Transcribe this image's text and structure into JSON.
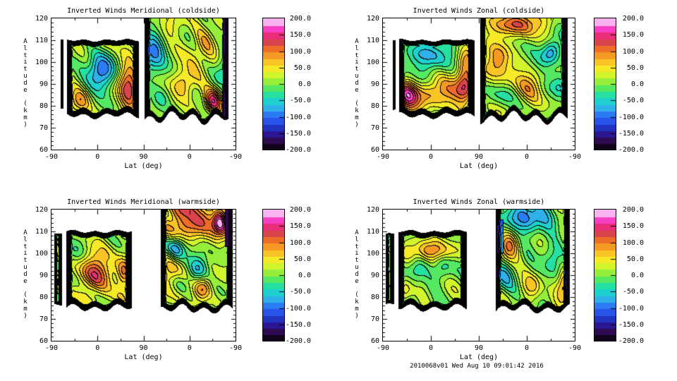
{
  "page": {
    "footer": "2010068v01 Wed Aug 10 09:01:42 2016",
    "background": "#ffffff",
    "text_color": "#000000"
  },
  "palette_bands": [
    "#10031a",
    "#2e0a52",
    "#2a1690",
    "#2233c0",
    "#2853e8",
    "#2b7cf2",
    "#2fb0e8",
    "#1ed0d0",
    "#25e0a0",
    "#55e862",
    "#95ee3a",
    "#d2f42c",
    "#f6ea28",
    "#f8c426",
    "#f49a24",
    "#ec6c28",
    "#d8444c",
    "#ea2d78",
    "#f53fc4",
    "#f9b2f0"
  ],
  "chart_data": [
    {
      "type": "filled_contour",
      "title": "Inverted Winds Meridional (coldside)",
      "xlabel": "Lat (deg)",
      "ylabel": "Altitude (km)",
      "x_tick_labels": [
        "-90",
        "0",
        "90",
        "0",
        "-90"
      ],
      "y_tick_labels": [
        "120",
        "110",
        "100",
        "90",
        "80",
        "70",
        "60"
      ],
      "y_range": [
        60,
        120
      ],
      "contour_level_step": 20,
      "colorbar": {
        "tick_labels": [
          "200.0",
          "150.0",
          "100.0",
          "50.0",
          "0.0",
          "-50.0",
          "-100.0",
          "-150.0",
          "-200.0"
        ],
        "range": [
          -200,
          200
        ],
        "n_bands": 20
      },
      "field": {
        "seed": 11,
        "base": 15,
        "regions": [
          {
            "kind": "sliver",
            "x0": 0.05,
            "x1": 0.066,
            "alt_bottom": 78,
            "alt_top": 110,
            "top_open": false,
            "wiggle": 0.4
          },
          {
            "kind": "block",
            "x0": 0.084,
            "x1": 0.477,
            "alt_bottom": 75.5,
            "alt_top": 110,
            "top_open": false,
            "wiggle": 1.0
          },
          {
            "kind": "block",
            "x0": 0.507,
            "x1": 0.962,
            "alt_bottom": 74.5,
            "alt_top": 120,
            "top_open": true,
            "wiggle": 2.0
          }
        ],
        "dark_columns": [
          {
            "x0": 0.935,
            "x1": 0.962,
            "alt0": 74,
            "alt1": 120,
            "s": 0.85
          }
        ],
        "blobs": [
          [
            0.27,
            95,
            -115,
            0.055,
            6
          ],
          [
            0.42,
            89,
            115,
            0.04,
            9
          ],
          [
            0.15,
            82,
            75,
            0.04,
            4
          ],
          [
            0.56,
            106,
            -105,
            0.05,
            7
          ],
          [
            0.64,
            116,
            55,
            0.05,
            5
          ],
          [
            0.72,
            91,
            70,
            0.05,
            5
          ],
          [
            0.88,
            82,
            120,
            0.035,
            4
          ],
          [
            0.83,
            107,
            55,
            0.045,
            6
          ],
          [
            0.93,
            96,
            -50,
            0.03,
            5
          ],
          [
            0.6,
            84,
            -40,
            0.04,
            4
          ]
        ]
      }
    },
    {
      "type": "filled_contour",
      "title": "Inverted Winds Zonal (coldside)",
      "xlabel": "Lat (deg)",
      "ylabel": "Altitude (km)",
      "x_tick_labels": [
        "-90",
        "0",
        "90",
        "0",
        "-90"
      ],
      "y_tick_labels": [
        "120",
        "110",
        "100",
        "90",
        "80",
        "70",
        "60"
      ],
      "y_range": [
        60,
        120
      ],
      "contour_level_step": 20,
      "colorbar": {
        "tick_labels": [
          "200.0",
          "150.0",
          "100.0",
          "50.0",
          "0.0",
          "-50.0",
          "-100.0",
          "-150.0",
          "-200.0"
        ],
        "range": [
          -200,
          200
        ],
        "n_bands": 20
      },
      "field": {
        "seed": 22,
        "base": 10,
        "regions": [
          {
            "kind": "sliver",
            "x0": 0.05,
            "x1": 0.066,
            "alt_bottom": 78,
            "alt_top": 110,
            "top_open": false,
            "wiggle": 0.4
          },
          {
            "kind": "block",
            "x0": 0.084,
            "x1": 0.477,
            "alt_bottom": 75.5,
            "alt_top": 110,
            "top_open": false,
            "wiggle": 1.0
          },
          {
            "kind": "block",
            "x0": 0.507,
            "x1": 0.962,
            "alt_bottom": 74.5,
            "alt_top": 120,
            "top_open": true,
            "wiggle": 2.0
          }
        ],
        "dark_columns": [
          {
            "x0": 0.94,
            "x1": 0.962,
            "alt0": 95,
            "alt1": 120,
            "s": 0.8
          }
        ],
        "blobs": [
          [
            0.24,
            102,
            -75,
            0.08,
            6
          ],
          [
            0.26,
            85,
            95,
            0.1,
            5
          ],
          [
            0.43,
            92,
            125,
            0.035,
            9
          ],
          [
            0.13,
            85,
            100,
            0.035,
            5
          ],
          [
            0.7,
            117,
            100,
            0.1,
            4
          ],
          [
            0.595,
            100,
            85,
            0.05,
            7
          ],
          [
            0.88,
            105,
            -100,
            0.035,
            4
          ],
          [
            0.76,
            88,
            60,
            0.05,
            5
          ],
          [
            0.93,
            91,
            -45,
            0.03,
            6
          ],
          [
            0.55,
            84,
            -35,
            0.05,
            5
          ]
        ]
      }
    },
    {
      "type": "filled_contour",
      "title": "Inverted Winds Meridional (warmside)",
      "xlabel": "Lat (deg)",
      "ylabel": "Altitude (km)",
      "x_tick_labels": [
        "-90",
        "0",
        "90",
        "0",
        "-90"
      ],
      "y_tick_labels": [
        "120",
        "110",
        "100",
        "90",
        "80",
        "70",
        "60"
      ],
      "y_range": [
        60,
        120
      ],
      "contour_level_step": 20,
      "colorbar": {
        "tick_labels": [
          "200.0",
          "150.0",
          "100.0",
          "50.0",
          "0.0",
          "-50.0",
          "-100.0",
          "-150.0",
          "-200.0"
        ],
        "range": [
          -200,
          200
        ],
        "n_bands": 20
      },
      "field": {
        "seed": 33,
        "base": 15,
        "regions": [
          {
            "kind": "sliver",
            "x0": 0.016,
            "x1": 0.057,
            "alt_bottom": 76.5,
            "alt_top": 109,
            "top_open": false,
            "wiggle": 0.5
          },
          {
            "kind": "block",
            "x0": 0.082,
            "x1": 0.437,
            "alt_bottom": 75,
            "alt_top": 110,
            "top_open": false,
            "wiggle": 1.2
          },
          {
            "kind": "block",
            "x0": 0.593,
            "x1": 0.986,
            "alt_bottom": 74.5,
            "alt_top": 120,
            "top_open": true,
            "wiggle": 1.5
          }
        ],
        "dark_columns": [
          {
            "x0": 0.945,
            "x1": 0.986,
            "alt0": 103,
            "alt1": 120,
            "s": 0.9
          }
        ],
        "blobs": [
          [
            0.24,
            91,
            110,
            0.06,
            7
          ],
          [
            0.395,
            90,
            80,
            0.028,
            6
          ],
          [
            0.15,
            101,
            -35,
            0.04,
            4
          ],
          [
            0.78,
            114,
            105,
            0.1,
            5
          ],
          [
            0.92,
            114,
            150,
            0.028,
            4
          ],
          [
            0.68,
            103,
            -65,
            0.035,
            4
          ],
          [
            0.8,
            93,
            -70,
            0.04,
            5
          ],
          [
            0.82,
            84,
            90,
            0.035,
            4
          ],
          [
            0.64,
            89,
            55,
            0.03,
            5
          ],
          [
            0.7,
            120,
            70,
            0.06,
            4
          ]
        ]
      }
    },
    {
      "type": "filled_contour",
      "title": "Inverted Winds Zonal (warmside)",
      "xlabel": "Lat (deg)",
      "ylabel": "Altitude (km)",
      "x_tick_labels": [
        "-90",
        "0",
        "90",
        "0",
        "-90"
      ],
      "y_tick_labels": [
        "120",
        "110",
        "100",
        "90",
        "80",
        "70",
        "60"
      ],
      "y_range": [
        60,
        120
      ],
      "contour_level_step": 20,
      "colorbar": {
        "tick_labels": [
          "200.0",
          "150.0",
          "100.0",
          "50.0",
          "0.0",
          "-50.0",
          "-100.0",
          "-150.0",
          "-200.0"
        ],
        "range": [
          -200,
          200
        ],
        "n_bands": 20
      },
      "field": {
        "seed": 44,
        "base": 10,
        "regions": [
          {
            "kind": "sliver",
            "x0": 0.016,
            "x1": 0.057,
            "alt_bottom": 76.5,
            "alt_top": 109,
            "top_open": false,
            "wiggle": 0.5
          },
          {
            "kind": "block",
            "x0": 0.082,
            "x1": 0.437,
            "alt_bottom": 75,
            "alt_top": 110,
            "top_open": false,
            "wiggle": 1.2
          },
          {
            "kind": "block",
            "x0": 0.588,
            "x1": 0.974,
            "alt_bottom": 74.5,
            "alt_top": 120,
            "top_open": true,
            "wiggle": 1.5
          }
        ],
        "dark_columns": [
          {
            "x0": 0.945,
            "x1": 0.974,
            "alt0": 80,
            "alt1": 92,
            "s": 0.6
          },
          {
            "x0": 0.6,
            "x1": 0.63,
            "alt0": 100,
            "alt1": 115,
            "s": 0.5
          }
        ],
        "blobs": [
          [
            0.25,
            101,
            85,
            0.1,
            3.5
          ],
          [
            0.17,
            92,
            -55,
            0.035,
            5
          ],
          [
            0.31,
            94,
            -50,
            0.035,
            5
          ],
          [
            0.12,
            84,
            55,
            0.03,
            4
          ],
          [
            0.75,
            116,
            -100,
            0.09,
            5
          ],
          [
            0.66,
            103,
            95,
            0.035,
            5
          ],
          [
            0.95,
            85,
            100,
            0.03,
            5
          ],
          [
            0.78,
            85,
            60,
            0.035,
            4
          ],
          [
            0.64,
            91,
            -55,
            0.04,
            5
          ],
          [
            0.88,
            96,
            -45,
            0.04,
            6
          ]
        ]
      }
    }
  ]
}
